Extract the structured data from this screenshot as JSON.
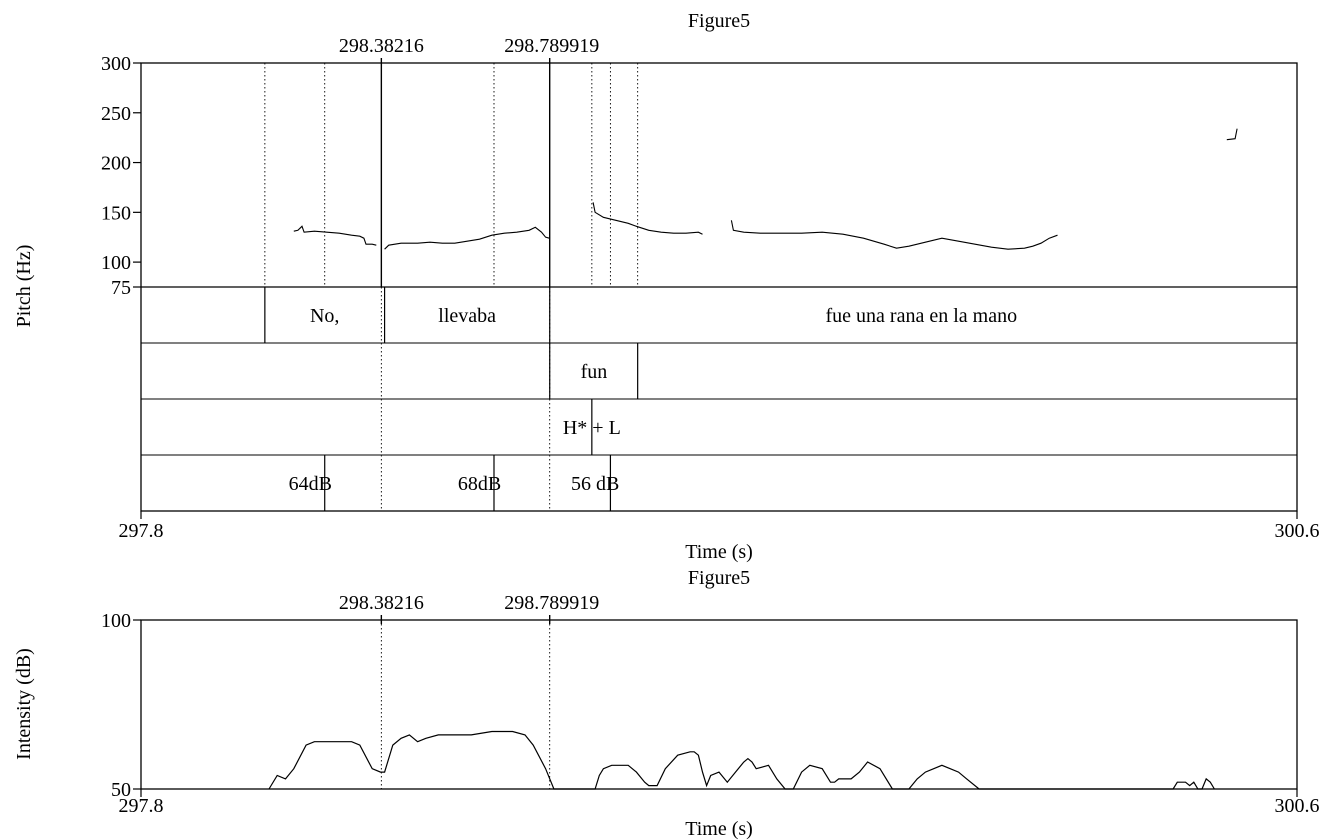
{
  "chart_data": [
    {
      "type": "line",
      "title": "Figure5",
      "xlabel": "Time (s)",
      "ylabel": "Pitch (Hz)",
      "xlim": [
        297.8,
        300.6
      ],
      "ylim": [
        75,
        300
      ],
      "x_tick_labels": [
        "297.8",
        "300.6"
      ],
      "y_ticks": [
        75,
        100,
        150,
        200,
        250,
        300
      ],
      "y_tick_labels": [
        "75",
        "100",
        "150",
        "200",
        "250",
        "300"
      ],
      "markers": [
        {
          "label": "298.38216",
          "x": 298.38216
        },
        {
          "label": "298.789919",
          "x": 298.789919
        }
      ],
      "dotted_guides": [
        298.1,
        298.245,
        298.655,
        298.892,
        298.937,
        299.003
      ],
      "series": [
        {
          "segments": [
            [
              [
                298.17,
                131
              ],
              [
                298.18,
                132
              ],
              [
                298.19,
                136
              ],
              [
                298.195,
                130
              ],
              [
                298.22,
                131
              ],
              [
                298.25,
                130
              ],
              [
                298.28,
                129
              ],
              [
                298.31,
                127
              ],
              [
                298.33,
                126
              ],
              [
                298.34,
                124
              ],
              [
                298.345,
                118
              ],
              [
                298.36,
                118
              ],
              [
                298.37,
                117
              ]
            ],
            [
              [
                298.39,
                113
              ],
              [
                298.4,
                117
              ],
              [
                298.43,
                119
              ],
              [
                298.47,
                119
              ],
              [
                298.5,
                120
              ],
              [
                298.53,
                119
              ],
              [
                298.56,
                119
              ],
              [
                298.59,
                121
              ],
              [
                298.62,
                123
              ],
              [
                298.65,
                127
              ],
              [
                298.68,
                129
              ],
              [
                298.71,
                130
              ],
              [
                298.74,
                132
              ],
              [
                298.755,
                135
              ],
              [
                298.77,
                130
              ],
              [
                298.78,
                125
              ],
              [
                298.789,
                124
              ]
            ],
            [
              [
                298.895,
                160
              ],
              [
                298.9,
                150
              ],
              [
                298.92,
                145
              ],
              [
                298.95,
                142
              ],
              [
                298.98,
                139
              ],
              [
                299.0,
                136
              ],
              [
                299.03,
                132
              ],
              [
                299.06,
                130
              ],
              [
                299.09,
                129
              ],
              [
                299.12,
                129
              ],
              [
                299.15,
                130
              ],
              [
                299.16,
                128
              ]
            ],
            [
              [
                299.23,
                142
              ],
              [
                299.235,
                132
              ],
              [
                299.26,
                130
              ],
              [
                299.3,
                129
              ],
              [
                299.36,
                129
              ],
              [
                299.4,
                129
              ],
              [
                299.45,
                130
              ],
              [
                299.5,
                128
              ],
              [
                299.55,
                124
              ],
              [
                299.6,
                118
              ],
              [
                299.63,
                114
              ],
              [
                299.66,
                116
              ],
              [
                299.7,
                120
              ],
              [
                299.74,
                124
              ],
              [
                299.78,
                121
              ],
              [
                299.82,
                118
              ],
              [
                299.86,
                115
              ],
              [
                299.9,
                113
              ],
              [
                299.94,
                114
              ],
              [
                299.96,
                116
              ],
              [
                299.98,
                119
              ],
              [
                300.0,
                124
              ],
              [
                300.02,
                127
              ]
            ],
            [
              [
                300.43,
                223
              ],
              [
                300.45,
                224
              ],
              [
                300.455,
                234
              ]
            ]
          ]
        }
      ],
      "tiers": [
        {
          "boundaries": [
            298.1,
            298.39,
            298.79
          ],
          "labels": [
            {
              "text": "No,",
              "x": 298.245
            },
            {
              "text": "llevaba",
              "x": 298.59
            },
            {
              "text": "fue una rana en la mano",
              "x": 299.69
            }
          ]
        },
        {
          "boundaries": [
            298.79,
            299.003
          ],
          "labels": [
            {
              "text": "fun",
              "x": 298.897
            }
          ]
        },
        {
          "boundaries": [
            298.892
          ],
          "labels": [
            {
              "text": "H* + L",
              "x": 298.892
            }
          ]
        },
        {
          "boundaries": [
            298.245,
            298.655,
            298.937
          ],
          "labels": [
            {
              "text": "64dB",
              "x": 298.21
            },
            {
              "text": "68dB",
              "x": 298.62
            },
            {
              "text": "56 dB",
              "x": 298.9
            }
          ]
        }
      ]
    },
    {
      "type": "area",
      "title": "Figure5",
      "xlabel": "Time (s)",
      "ylabel": "Intensity (dB)",
      "xlim": [
        297.8,
        300.6
      ],
      "ylim": [
        50,
        100
      ],
      "x_tick_labels": [
        "297.8",
        "300.6"
      ],
      "y_ticks": [
        50,
        100
      ],
      "y_tick_labels": [
        "50",
        "100"
      ],
      "markers": [
        {
          "label": "298.38216",
          "x": 298.38216
        },
        {
          "label": "298.789919",
          "x": 298.789919
        }
      ],
      "series": [
        {
          "x": [
            298.11,
            298.13,
            298.15,
            298.17,
            298.2,
            298.22,
            298.25,
            298.28,
            298.31,
            298.33,
            298.36,
            298.38,
            298.39,
            298.41,
            298.43,
            298.45,
            298.47,
            298.49,
            298.52,
            298.55,
            298.6,
            298.65,
            298.7,
            298.73,
            298.75,
            298.78,
            298.8,
            298.9,
            298.91,
            298.92,
            298.94,
            298.96,
            298.98,
            299.0,
            299.02,
            299.03,
            299.05,
            299.07,
            299.1,
            299.13,
            299.14,
            299.15,
            299.16,
            299.17,
            299.18,
            299.2,
            299.22,
            299.24,
            299.26,
            299.27,
            299.28,
            299.29,
            299.32,
            299.34,
            299.36,
            299.37,
            299.38,
            299.4,
            299.42,
            299.45,
            299.47,
            299.48,
            299.49,
            299.51,
            299.52,
            299.54,
            299.56,
            299.59,
            299.62,
            299.65,
            299.66,
            299.68,
            299.7,
            299.72,
            299.74,
            299.76,
            299.78,
            299.8,
            299.83,
            299.85,
            300.3,
            300.31,
            300.33,
            300.34,
            300.35,
            300.36,
            300.37,
            300.38,
            300.39,
            300.4
          ],
          "y": [
            50,
            54,
            53,
            56,
            63,
            64,
            64,
            64,
            64,
            63,
            56,
            55,
            55,
            63,
            65,
            66,
            64,
            65,
            66,
            66,
            66,
            67,
            67,
            66,
            63,
            56,
            50,
            50,
            54,
            56,
            57,
            57,
            57,
            55,
            52,
            51,
            51,
            56,
            60,
            61,
            61,
            60,
            55,
            51,
            54,
            55,
            52,
            55,
            58,
            59,
            58,
            56,
            57,
            53,
            50,
            50,
            50,
            55,
            57,
            56,
            52,
            52,
            53,
            53,
            53,
            55,
            58,
            56,
            50,
            50,
            50,
            53,
            55,
            56,
            57,
            56,
            55,
            53,
            50,
            50,
            50,
            52,
            52,
            51,
            52,
            50,
            50,
            53,
            52,
            50
          ]
        }
      ]
    }
  ]
}
